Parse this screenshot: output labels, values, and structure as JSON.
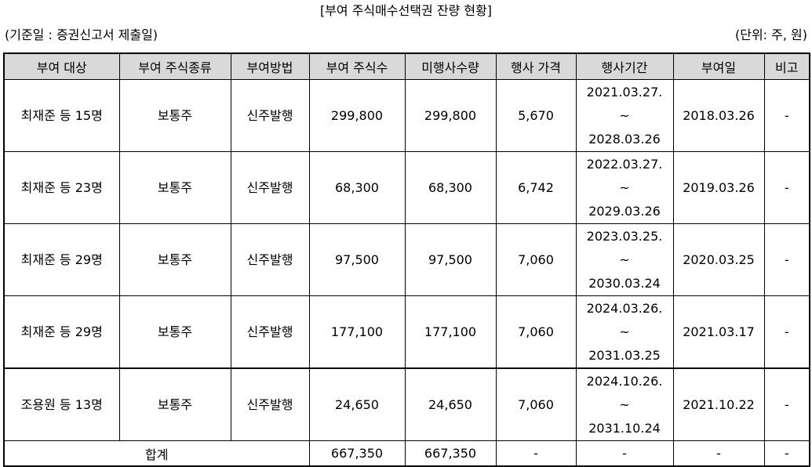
{
  "title": "[부여 주식매수선택권 잔량 현황]",
  "basis_date": "(기준일 : 증권신고서 제출일)",
  "unit": "(단위: 주, 원)",
  "headers": [
    "부여 대상",
    "부여 주식종류",
    "부여방법",
    "부여 주식수",
    "미행사수량",
    "행사 가격",
    "행사기간",
    "부여일",
    "비고"
  ],
  "rows": [
    {
      "target": "최재준 등 15명",
      "stock_type": "보통주",
      "method": "신주발행",
      "granted": "299,800",
      "unexercised": "299,800",
      "price": "5,670",
      "period_start": "2021.03.27.",
      "period_sep": "~",
      "period_end": "2028.03.26",
      "grant_date": "2018.03.26",
      "note": "-"
    },
    {
      "target": "최재준 등 23명",
      "stock_type": "보통주",
      "method": "신주발행",
      "granted": "68,300",
      "unexercised": "68,300",
      "price": "6,742",
      "period_start": "2022.03.27.",
      "period_sep": "~",
      "period_end": "2029.03.26",
      "grant_date": "2019.03.26",
      "note": "-"
    },
    {
      "target": "최재준 등 29명",
      "stock_type": "보통주",
      "method": "신주발행",
      "granted": "97,500",
      "unexercised": "97,500",
      "price": "7,060",
      "period_start": "2023.03.25.",
      "period_sep": "~",
      "period_end": "2030.03.24",
      "grant_date": "2020.03.25",
      "note": "-"
    },
    {
      "target": "최재준 등 29명",
      "stock_type": "보통주",
      "method": "신주발행",
      "granted": "177,100",
      "unexercised": "177,100",
      "price": "7,060",
      "period_start": "2024.03.26.",
      "period_sep": "~",
      "period_end": "2031.03.25",
      "grant_date": "2021.03.17",
      "note": "-"
    },
    {
      "target": "조용원 등 13명",
      "stock_type": "보통주",
      "method": "신주발행",
      "granted": "24,650",
      "unexercised": "24,650",
      "price": "7,060",
      "period_start": "2024.10.26.",
      "period_sep": "~",
      "period_end": "2031.10.24",
      "grant_date": "2021.10.22",
      "note": "-"
    }
  ],
  "total": {
    "label": "합계",
    "granted": "667,350",
    "unexercised": "667,350",
    "price": "-",
    "period": "-",
    "grant_date": "-",
    "note": "-"
  }
}
